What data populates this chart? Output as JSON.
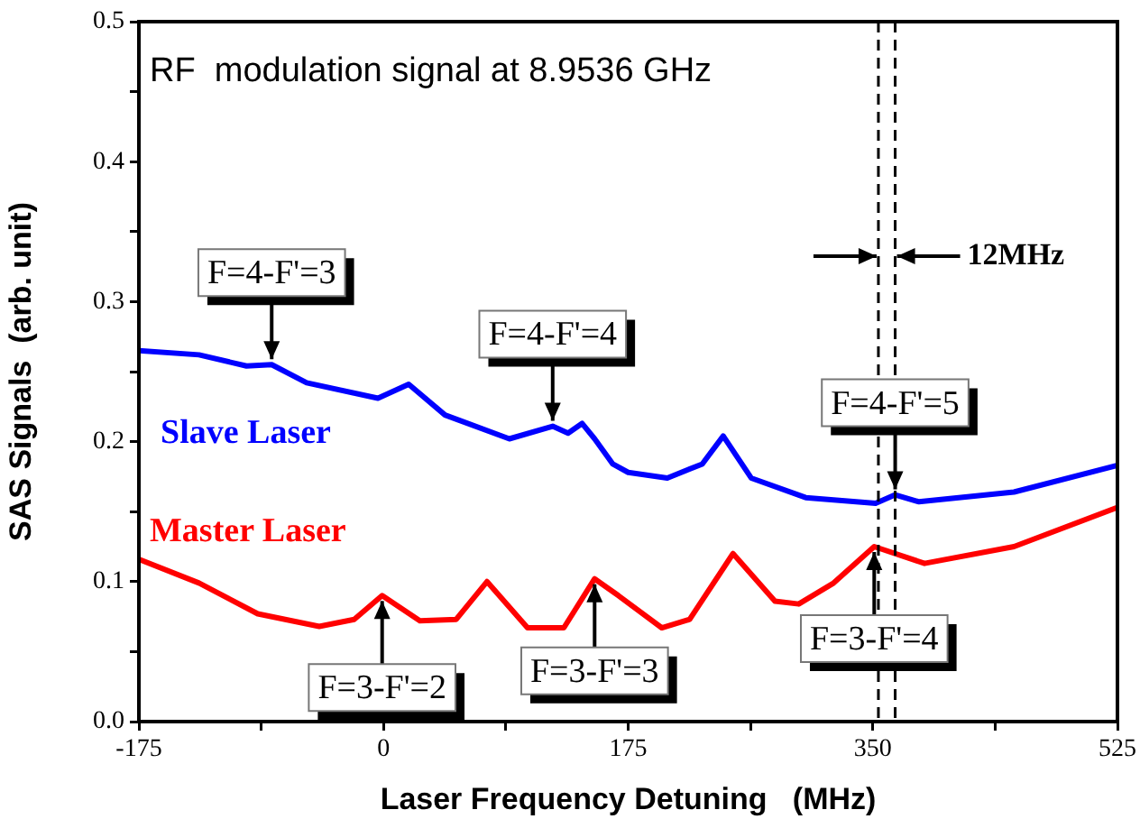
{
  "chart_data": {
    "type": "line",
    "title": "RF  modulation signal at 8.9536 GHz",
    "xlabel": "Laser Frequency Detuning   (MHz)",
    "ylabel": "SAS Signals  (arb. unit)",
    "series": [
      {
        "name": "Slave Laser",
        "color": "#0000ff",
        "x": [
          -175,
          -132,
          -98,
          -80,
          -55,
          -4,
          18,
          44,
          90,
          121,
          132,
          142,
          151,
          164,
          175,
          203,
          228,
          243,
          263,
          302,
          352,
          366,
          383,
          451,
          525
        ],
        "values": [
          0.265,
          0.262,
          0.254,
          0.255,
          0.242,
          0.231,
          0.241,
          0.219,
          0.202,
          0.211,
          0.206,
          0.213,
          0.202,
          0.184,
          0.178,
          0.174,
          0.184,
          0.204,
          0.174,
          0.16,
          0.156,
          0.162,
          0.157,
          0.164,
          0.183
        ]
      },
      {
        "name": "Master Laser",
        "color": "#ff0000",
        "x": [
          -175,
          -132,
          -90,
          -46,
          -21,
          -1,
          26,
          52,
          74,
          103,
          129,
          151,
          168,
          199,
          219,
          250,
          280,
          297,
          322,
          351,
          387,
          451,
          525
        ],
        "values": [
          0.116,
          0.099,
          0.077,
          0.068,
          0.073,
          0.09,
          0.072,
          0.073,
          0.1,
          0.067,
          0.067,
          0.102,
          0.09,
          0.067,
          0.073,
          0.12,
          0.086,
          0.084,
          0.099,
          0.125,
          0.113,
          0.125,
          0.153
        ]
      }
    ],
    "annotations": [
      {
        "text": "F=4-F'=3",
        "x": -80,
        "y": 0.255
      },
      {
        "text": "F=4-F'=4",
        "x": 121,
        "y": 0.211
      },
      {
        "text": "F=4-F'=5",
        "x": 366,
        "y": 0.162
      },
      {
        "text": "F=3-F'=2",
        "x": -1,
        "y": 0.09
      },
      {
        "text": "F=3-F'=3",
        "x": 151,
        "y": 0.102
      },
      {
        "text": "F=3-F'=4",
        "x": 351,
        "y": 0.125
      }
    ],
    "ref_lines": [
      {
        "axis": "x",
        "value": 354,
        "line_style": "dashed",
        "color": "#000000"
      },
      {
        "axis": "x",
        "value": 366,
        "line_style": "dashed",
        "color": "#000000",
        "label": "12MHz"
      }
    ],
    "xlim": [
      -175,
      525
    ],
    "xticks": [
      -175,
      {
        "value": -87.5,
        "label": null
      },
      {
        "value": 0,
        "label": "0"
      },
      {
        "value": 87.5,
        "label": null
      },
      175,
      {
        "value": 262.5,
        "label": null
      },
      350,
      {
        "value": 437.5,
        "label": null
      },
      525
    ],
    "ylim": [
      0,
      0.5
    ],
    "yticks": [
      {
        "value": 0,
        "label": "0.0"
      },
      {
        "value": 0.05,
        "label": null
      },
      0.1,
      {
        "value": 0.15,
        "label": null
      },
      0.2,
      {
        "value": 0.25,
        "label": null
      },
      0.3,
      {
        "value": 0.35,
        "label": null
      },
      0.4,
      {
        "value": 0.45,
        "label": null
      },
      0.5
    ],
    "grid": false,
    "legend": false,
    "marker": "none",
    "line_style": "solid"
  }
}
